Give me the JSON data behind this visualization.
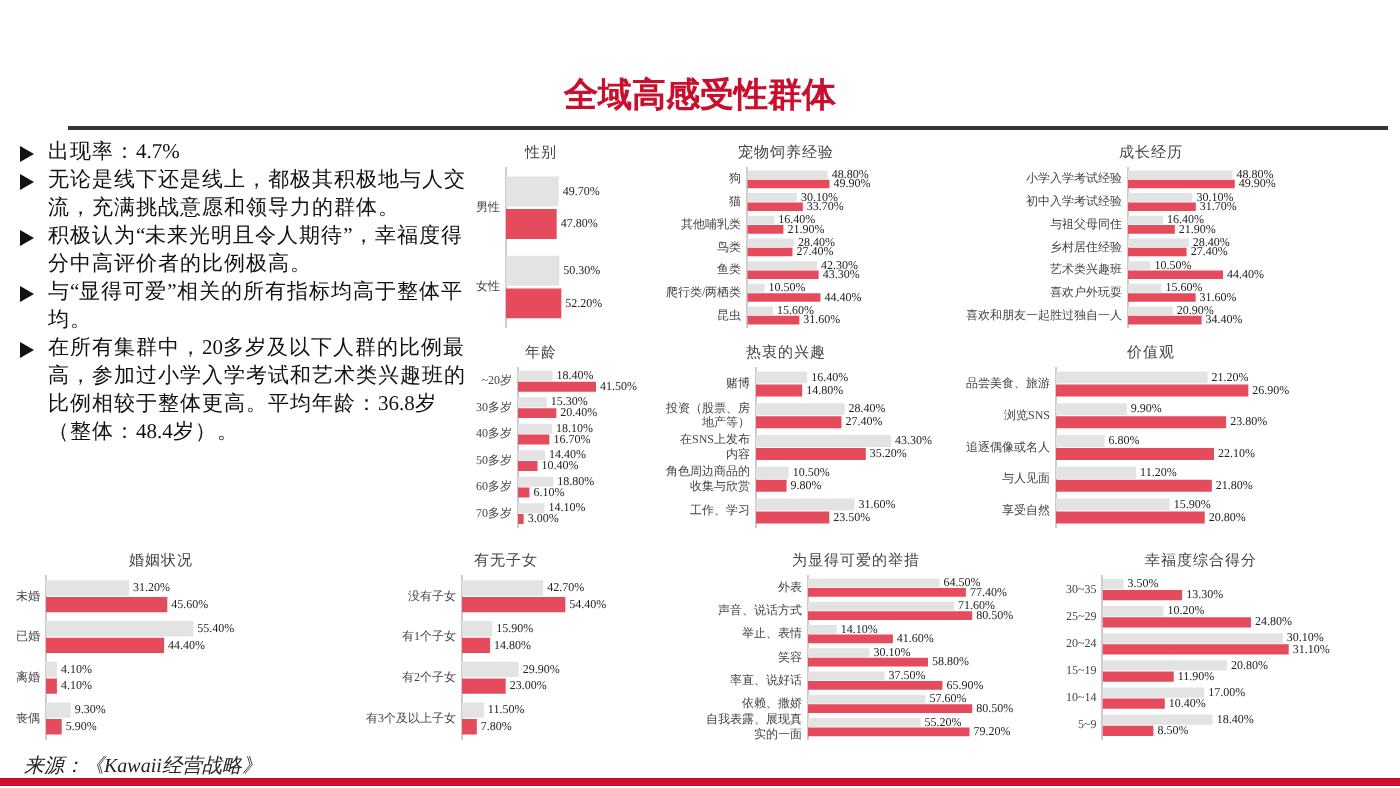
{
  "chart_data": [
    {
      "type": "other",
      "title": "全域高感受性群体",
      "annotations": [
        "出现率：4.7%",
        "无论是线下还是线上，都极其积极地与人交流，充满挑战意愿和领导力的群体。",
        "积极认为“未来光明且令人期待”，幸福度得分中高评价者的比例极高。",
        "与“显得可爱”相关的所有指标均高于整体平均。",
        "在所有集群中，20多岁及以下人群的比例最高，参加过小学入学考试和艺术类兴趣班的比例相较于整体更高。平均年龄：36.8岁（整体：48.4岁）。"
      ]
    },
    {
      "type": "bar",
      "orientation": "horizontal",
      "title": "性别",
      "categories": [
        "男性",
        "女性"
      ],
      "tick_labels": "y",
      "series": [
        {
          "color": "#e3e3e3",
          "values": [
            49.7,
            50.3
          ],
          "value_labels": [
            "49.70%",
            "50.30%"
          ]
        },
        {
          "color": "#e54b5c",
          "values": [
            47.8,
            52.2
          ],
          "value_labels": [
            "47.80%",
            "52.20%"
          ]
        }
      ]
    },
    {
      "type": "bar",
      "orientation": "horizontal",
      "title": "宠物饲养经验",
      "categories": [
        "狗",
        "猫",
        "其他哺乳类",
        "鸟类",
        "鱼类",
        "爬行类/两栖类",
        "昆虫"
      ],
      "tick_labels": "y",
      "series": [
        {
          "color": "#e3e3e3",
          "values": [
            48.8,
            30.1,
            16.4,
            28.4,
            42.3,
            10.5,
            15.6
          ],
          "value_labels": [
            "48.80%",
            "30.10%",
            "16.40%",
            "28.40%",
            "42.30%",
            "10.50%",
            "15.60%"
          ]
        },
        {
          "color": "#e54b5c",
          "values": [
            49.9,
            33.7,
            21.9,
            27.4,
            43.3,
            44.4,
            31.6
          ],
          "value_labels": [
            "49.90%",
            "33.70%",
            "21.90%",
            "27.40%",
            "43.30%",
            "44.40%",
            "31.60%"
          ]
        }
      ]
    },
    {
      "type": "bar",
      "orientation": "horizontal",
      "title": "成长经历",
      "categories": [
        "小学入学考试经验",
        "初中入学考试经验",
        "与祖父母同住",
        "乡村居住经验",
        "艺术类兴趣班",
        "喜欢户外玩耍",
        "喜欢和朋友一起胜过独自一人"
      ],
      "tick_labels": "y",
      "series": [
        {
          "color": "#e3e3e3",
          "values": [
            48.8,
            30.1,
            16.4,
            28.4,
            10.5,
            15.6,
            20.9
          ],
          "value_labels": [
            "48.80%",
            "30.10%",
            "16.40%",
            "28.40%",
            "10.50%",
            "15.60%",
            "20.90%"
          ]
        },
        {
          "color": "#e54b5c",
          "values": [
            49.9,
            31.7,
            21.9,
            27.4,
            44.4,
            31.6,
            34.4
          ],
          "value_labels": [
            "49.90%",
            "31.70%",
            "21.90%",
            "27.40%",
            "44.40%",
            "31.60%",
            "34.40%"
          ]
        }
      ]
    },
    {
      "type": "bar",
      "orientation": "horizontal",
      "title": "年龄",
      "categories": [
        "~20岁",
        "30多岁",
        "40多岁",
        "50多岁",
        "60多岁",
        "70多岁"
      ],
      "tick_labels": "y",
      "series": [
        {
          "color": "#e3e3e3",
          "values": [
            18.4,
            15.3,
            18.1,
            14.4,
            18.8,
            14.1
          ],
          "value_labels": [
            "18.40%",
            "15.30%",
            "18.10%",
            "14.40%",
            "18.80%",
            "14.10%"
          ]
        },
        {
          "color": "#e54b5c",
          "values": [
            41.5,
            20.4,
            16.7,
            10.4,
            6.1,
            3.0
          ],
          "value_labels": [
            "41.50%",
            "20.40%",
            "16.70%",
            "10.40%",
            "6.10%",
            "3.00%"
          ]
        }
      ]
    },
    {
      "type": "bar",
      "orientation": "horizontal",
      "title": "热衷的兴趣",
      "categories": [
        "赌博",
        "投资（股票、房地产等）",
        "在SNS上发布内容",
        "角色周边商品的收集与欣赏",
        "工作、学习"
      ],
      "tick_labels": "y",
      "series": [
        {
          "color": "#e3e3e3",
          "values": [
            16.4,
            28.4,
            43.3,
            10.5,
            31.6
          ],
          "value_labels": [
            "16.40%",
            "28.40%",
            "43.30%",
            "10.50%",
            "31.60%"
          ]
        },
        {
          "color": "#e54b5c",
          "values": [
            14.8,
            27.4,
            35.2,
            9.8,
            23.5
          ],
          "value_labels": [
            "14.80%",
            "27.40%",
            "35.20%",
            "9.80%",
            "23.50%"
          ]
        }
      ]
    },
    {
      "type": "bar",
      "orientation": "horizontal",
      "title": "价值观",
      "categories": [
        "品尝美食、旅游",
        "浏览SNS",
        "追逐偶像或名人",
        "与人见面",
        "享受自然"
      ],
      "tick_labels": "y",
      "series": [
        {
          "color": "#e3e3e3",
          "values": [
            21.2,
            9.9,
            6.8,
            11.2,
            15.9
          ],
          "value_labels": [
            "21.20%",
            "9.90%",
            "6.80%",
            "11.20%",
            "15.90%"
          ]
        },
        {
          "color": "#e54b5c",
          "values": [
            26.9,
            23.8,
            22.1,
            21.8,
            20.8
          ],
          "value_labels": [
            "26.90%",
            "23.80%",
            "22.10%",
            "21.80%",
            "20.80%"
          ]
        }
      ]
    },
    {
      "type": "bar",
      "orientation": "horizontal",
      "title": "婚姻状况",
      "categories": [
        "未婚",
        "已婚",
        "离婚",
        "丧偶"
      ],
      "tick_labels": "y",
      "series": [
        {
          "color": "#e3e3e3",
          "values": [
            31.2,
            55.4,
            4.1,
            9.3
          ],
          "value_labels": [
            "31.20%",
            "55.40%",
            "4.10%",
            "9.30%"
          ]
        },
        {
          "color": "#e54b5c",
          "values": [
            45.6,
            44.4,
            4.1,
            5.9
          ],
          "value_labels": [
            "45.60%",
            "44.40%",
            "4.10%",
            "5.90%"
          ]
        }
      ]
    },
    {
      "type": "bar",
      "orientation": "horizontal",
      "title": "有无子女",
      "categories": [
        "没有子女",
        "有1个子女",
        "有2个子女",
        "有3个及以上子女"
      ],
      "tick_labels": "y",
      "series": [
        {
          "color": "#e3e3e3",
          "values": [
            42.7,
            15.9,
            29.9,
            11.5
          ],
          "value_labels": [
            "42.70%",
            "15.90%",
            "29.90%",
            "11.50%"
          ]
        },
        {
          "color": "#e54b5c",
          "values": [
            54.4,
            14.8,
            23.0,
            7.8
          ],
          "value_labels": [
            "54.40%",
            "14.80%",
            "23.00%",
            "7.80%"
          ]
        }
      ]
    },
    {
      "type": "bar",
      "orientation": "horizontal",
      "title": "为显得可爱的举措",
      "categories": [
        "外表",
        "声音、说话方式",
        "举止、表情",
        "笑容",
        "率直、说好话",
        "依赖、撒娇",
        "自我表露、展现真实的一面"
      ],
      "tick_labels": "y",
      "series": [
        {
          "color": "#e3e3e3",
          "values": [
            64.5,
            71.6,
            14.1,
            30.1,
            37.5,
            57.6,
            55.2
          ],
          "value_labels": [
            "64.50%",
            "71.60%",
            "14.10%",
            "30.10%",
            "37.50%",
            "57.60%",
            "55.20%"
          ]
        },
        {
          "color": "#e54b5c",
          "values": [
            77.4,
            80.5,
            41.6,
            58.8,
            65.9,
            80.5,
            79.2
          ],
          "value_labels": [
            "77.40%",
            "80.50%",
            "41.60%",
            "58.80%",
            "65.90%",
            "80.50%",
            "79.20%"
          ]
        }
      ]
    },
    {
      "type": "bar",
      "orientation": "horizontal",
      "title": "幸福度综合得分",
      "categories": [
        "30~35",
        "25~29",
        "20~24",
        "15~19",
        "10~14",
        "5~9"
      ],
      "tick_labels": "y",
      "annotations": [
        "来源：《Kawaii经营战略》"
      ],
      "series": [
        {
          "color": "#e3e3e3",
          "values": [
            3.5,
            10.2,
            30.1,
            20.8,
            17.0,
            18.4
          ],
          "value_labels": [
            "3.50%",
            "10.20%",
            "30.10%",
            "20.80%",
            "17.00%",
            "18.40%"
          ]
        },
        {
          "color": "#e54b5c",
          "values": [
            13.3,
            24.8,
            31.1,
            11.9,
            10.4,
            8.5
          ],
          "value_labels": [
            "13.30%",
            "24.80%",
            "31.10%",
            "11.90%",
            "10.40%",
            "8.50%"
          ]
        }
      ]
    }
  ]
}
